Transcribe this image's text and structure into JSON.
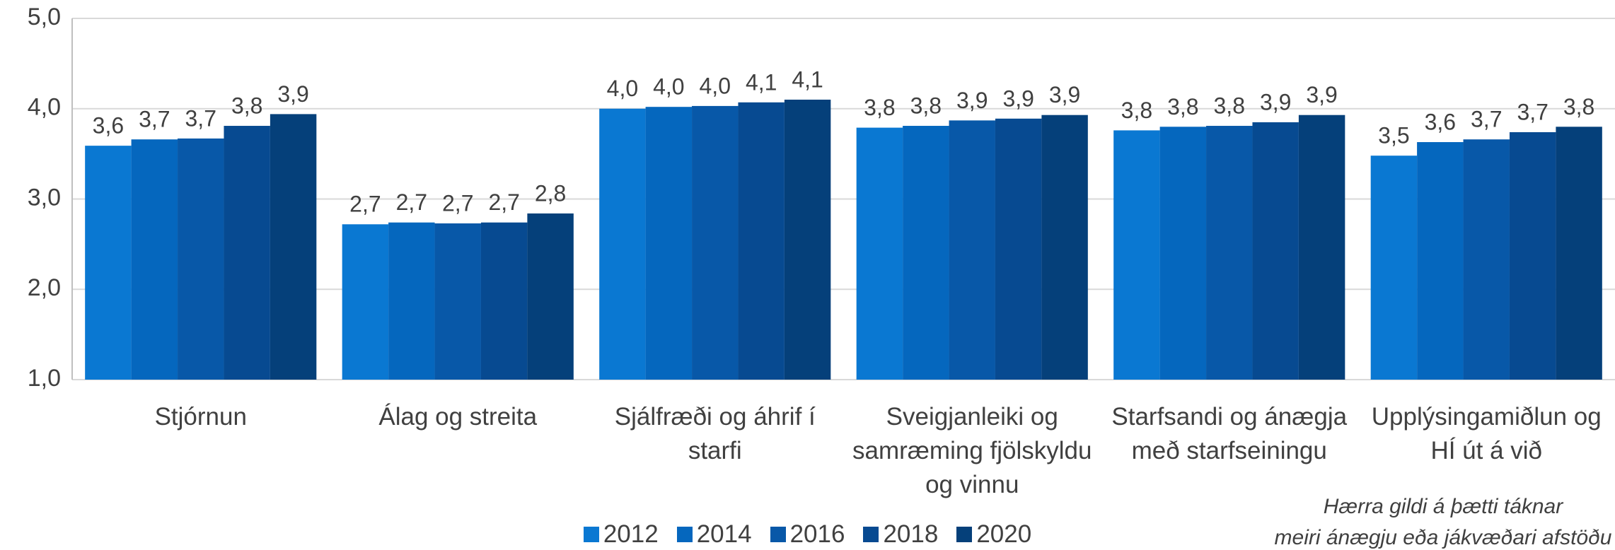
{
  "chart_data": {
    "type": "bar",
    "categories": [
      "Stjórnun",
      "Álag og streita",
      "Sjálfræði og áhrif í starfi",
      "Sveigjanleiki og samræming fjölskyldu og vinnu",
      "Starfsandi og ánægja með starfseiningu",
      "Upplýsingamiðlun og HÍ út á við"
    ],
    "series": [
      {
        "name": "2012",
        "color": "#0a78d2",
        "values": [
          3.59,
          2.72,
          4.0,
          3.79,
          3.76,
          3.48
        ],
        "value_labels": [
          "3,6",
          "2,7",
          "4,0",
          "3,8",
          "3,8",
          "3,5"
        ]
      },
      {
        "name": "2014",
        "color": "#0567be",
        "values": [
          3.66,
          2.74,
          4.02,
          3.81,
          3.8,
          3.63
        ],
        "value_labels": [
          "3,7",
          "2,7",
          "4,0",
          "3,8",
          "3,8",
          "3,6"
        ]
      },
      {
        "name": "2016",
        "color": "#0858a8",
        "values": [
          3.67,
          2.73,
          4.03,
          3.87,
          3.81,
          3.66
        ],
        "value_labels": [
          "3,7",
          "2,7",
          "4,0",
          "3,9",
          "3,8",
          "3,7"
        ]
      },
      {
        "name": "2018",
        "color": "#074a91",
        "values": [
          3.81,
          2.74,
          4.07,
          3.89,
          3.85,
          3.74
        ],
        "value_labels": [
          "3,8",
          "2,7",
          "4,1",
          "3,9",
          "3,9",
          "3,7"
        ]
      },
      {
        "name": "2020",
        "color": "#05407a",
        "values": [
          3.94,
          2.84,
          4.1,
          3.93,
          3.93,
          3.8
        ],
        "value_labels": [
          "3,9",
          "2,8",
          "4,1",
          "3,9",
          "3,9",
          "3,8"
        ]
      }
    ],
    "ylim": [
      1,
      5
    ],
    "yticks": [
      {
        "value": 1,
        "label": "1,0"
      },
      {
        "value": 2,
        "label": "2,0"
      },
      {
        "value": 3,
        "label": "3,0"
      },
      {
        "value": 4,
        "label": "4,0"
      },
      {
        "value": 5,
        "label": "5,0"
      }
    ],
    "grid": true,
    "legend": "bottom",
    "annotations": [
      "Hærra gildi á þætti táknar",
      "meiri ánægju eða jákvæðari afstöðu"
    ]
  }
}
